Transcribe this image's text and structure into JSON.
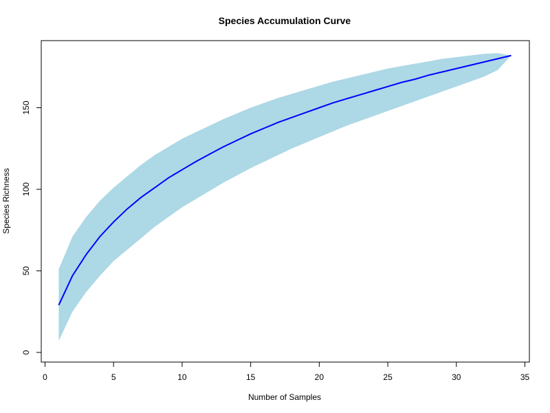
{
  "chart_data": {
    "type": "area",
    "title": "Species Accumulation Curve",
    "xlabel": "Number of Samples",
    "ylabel": "Species Richness",
    "xlim": [
      0,
      35
    ],
    "ylim": [
      0,
      190
    ],
    "x_ticks": [
      "0",
      "5",
      "10",
      "15",
      "20",
      "25",
      "30",
      "35"
    ],
    "y_ticks": [
      "0",
      "50",
      "100",
      "150"
    ],
    "x": [
      1,
      2,
      3,
      4,
      5,
      6,
      7,
      8,
      9,
      10,
      11,
      12,
      13,
      14,
      15,
      16,
      17,
      18,
      19,
      20,
      21,
      22,
      23,
      24,
      25,
      26,
      27,
      28,
      29,
      30,
      31,
      32,
      33,
      34
    ],
    "richness": [
      29,
      47,
      60,
      71,
      80,
      88,
      95,
      101,
      107,
      112,
      117,
      121.5,
      126,
      130,
      134,
      137.5,
      141,
      144,
      147,
      150,
      153,
      155.5,
      158,
      160.5,
      163,
      165.5,
      167.5,
      170,
      172,
      174,
      176,
      178,
      180,
      182
    ],
    "upper": [
      51,
      71,
      83,
      93,
      101,
      108,
      115,
      121,
      126,
      131,
      135,
      139,
      143,
      146.5,
      150,
      153,
      156,
      158.5,
      161,
      163.5,
      166,
      168,
      170,
      172,
      174,
      175.5,
      177,
      178.5,
      180,
      181,
      182,
      183,
      183.5,
      182
    ],
    "lower": [
      7,
      25,
      37,
      47,
      56,
      63,
      70,
      77,
      83,
      89,
      94,
      99,
      104,
      108.5,
      113,
      117,
      121,
      125,
      128.5,
      132,
      135.5,
      139,
      142,
      145,
      148,
      151,
      154,
      157,
      160,
      163,
      166,
      169,
      173,
      182
    ],
    "colors": {
      "line": "#0000ff",
      "band": "#add8e6"
    }
  }
}
